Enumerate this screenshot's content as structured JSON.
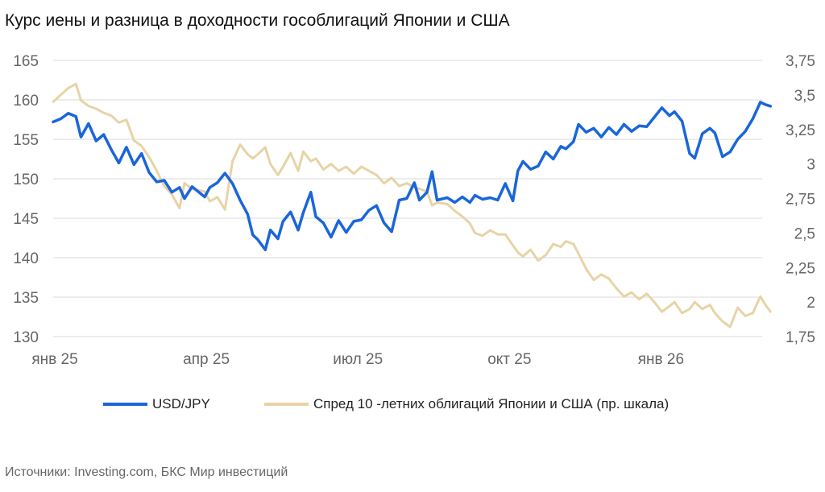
{
  "title": "Курс иены и разница в доходности гособлигаций Японии и США",
  "source": "Источники: Investing.com, БКС Мир инвестиций",
  "colors": {
    "usdjpy": "#1a66d9",
    "spread": "#e7d3a6",
    "grid": "#d9d9d9",
    "tick": "#666666"
  },
  "legend": [
    {
      "label": "USD/JPY",
      "color": "#1a66d9"
    },
    {
      "label": "Спред 10 -летних облигаций Японии и США (пр. шкала)",
      "color": "#e7d3a6"
    }
  ],
  "chart_data": {
    "type": "line",
    "title": "Курс иены и разница в доходности гособлигаций Японии и США",
    "x_labels": [
      {
        "label": "янв 25",
        "month": 0
      },
      {
        "label": "апр 25",
        "month": 3
      },
      {
        "label": "июл 25",
        "month": 6
      },
      {
        "label": "окт 25",
        "month": 9
      },
      {
        "label": "янв 26",
        "month": 12
      }
    ],
    "y_left": {
      "min": 130,
      "max": 165,
      "ticks": [
        "130",
        "135",
        "140",
        "145",
        "150",
        "155",
        "160",
        "165"
      ]
    },
    "y_right": {
      "min": 1.75,
      "max": 3.75,
      "ticks": [
        "1,75",
        "2",
        "2,25",
        "2,5",
        "2,75",
        "3",
        "3,25",
        "3,5",
        "3,75"
      ]
    },
    "grid": true,
    "legend_position": "bottom",
    "series": [
      {
        "name": "USD/JPY",
        "axis": "left",
        "color": "#1a66d9",
        "points": [
          [
            0.0,
            157.2
          ],
          [
            0.15,
            157.6
          ],
          [
            0.3,
            158.3
          ],
          [
            0.45,
            157.9
          ],
          [
            0.55,
            155.3
          ],
          [
            0.7,
            157.0
          ],
          [
            0.85,
            154.8
          ],
          [
            1.0,
            155.6
          ],
          [
            1.15,
            153.7
          ],
          [
            1.3,
            152.0
          ],
          [
            1.45,
            154.0
          ],
          [
            1.6,
            151.8
          ],
          [
            1.75,
            153.2
          ],
          [
            1.9,
            150.8
          ],
          [
            2.05,
            149.6
          ],
          [
            2.2,
            149.8
          ],
          [
            2.35,
            148.3
          ],
          [
            2.5,
            148.9
          ],
          [
            2.6,
            147.5
          ],
          [
            2.75,
            149.0
          ],
          [
            3.0,
            147.7
          ],
          [
            3.1,
            148.9
          ],
          [
            3.25,
            149.5
          ],
          [
            3.4,
            150.7
          ],
          [
            3.55,
            149.4
          ],
          [
            3.7,
            147.3
          ],
          [
            3.85,
            145.5
          ],
          [
            3.95,
            142.9
          ],
          [
            4.05,
            142.3
          ],
          [
            4.2,
            141.0
          ],
          [
            4.3,
            143.5
          ],
          [
            4.45,
            142.4
          ],
          [
            4.55,
            144.6
          ],
          [
            4.7,
            145.8
          ],
          [
            4.85,
            143.5
          ],
          [
            4.95,
            145.7
          ],
          [
            5.1,
            148.3
          ],
          [
            5.2,
            145.2
          ],
          [
            5.35,
            144.4
          ],
          [
            5.5,
            142.6
          ],
          [
            5.65,
            144.7
          ],
          [
            5.8,
            143.2
          ],
          [
            5.95,
            144.6
          ],
          [
            6.1,
            144.8
          ],
          [
            6.25,
            146.0
          ],
          [
            6.4,
            146.6
          ],
          [
            6.55,
            144.4
          ],
          [
            6.7,
            143.3
          ],
          [
            6.85,
            147.3
          ],
          [
            7.0,
            147.5
          ],
          [
            7.15,
            149.5
          ],
          [
            7.25,
            147.3
          ],
          [
            7.4,
            148.3
          ],
          [
            7.5,
            150.9
          ],
          [
            7.6,
            147.3
          ],
          [
            7.8,
            147.6
          ],
          [
            7.95,
            147.0
          ],
          [
            8.1,
            147.7
          ],
          [
            8.25,
            147.0
          ],
          [
            8.35,
            147.9
          ],
          [
            8.5,
            147.4
          ],
          [
            8.65,
            147.6
          ],
          [
            8.8,
            147.3
          ],
          [
            8.95,
            149.4
          ],
          [
            9.1,
            147.2
          ],
          [
            9.2,
            151.0
          ],
          [
            9.3,
            152.2
          ],
          [
            9.45,
            151.2
          ],
          [
            9.6,
            151.6
          ],
          [
            9.75,
            153.4
          ],
          [
            9.9,
            152.5
          ],
          [
            10.05,
            154.1
          ],
          [
            10.15,
            153.8
          ],
          [
            10.3,
            154.7
          ],
          [
            10.4,
            156.9
          ],
          [
            10.55,
            155.9
          ],
          [
            10.7,
            156.4
          ],
          [
            10.85,
            155.3
          ],
          [
            11.0,
            156.5
          ],
          [
            11.15,
            155.6
          ],
          [
            11.3,
            156.9
          ],
          [
            11.45,
            156.0
          ],
          [
            11.6,
            156.7
          ],
          [
            11.75,
            156.6
          ],
          [
            11.9,
            157.8
          ],
          [
            12.05,
            159.0
          ],
          [
            12.2,
            158.0
          ],
          [
            12.3,
            158.5
          ],
          [
            12.45,
            157.3
          ],
          [
            12.6,
            153.2
          ],
          [
            12.7,
            152.6
          ],
          [
            12.85,
            155.7
          ],
          [
            13.0,
            156.4
          ],
          [
            13.1,
            155.8
          ],
          [
            13.25,
            152.8
          ],
          [
            13.4,
            153.4
          ],
          [
            13.55,
            155.0
          ],
          [
            13.7,
            156.0
          ],
          [
            13.85,
            157.6
          ],
          [
            14.0,
            159.7
          ],
          [
            14.1,
            159.4
          ],
          [
            14.2,
            159.2
          ]
        ]
      },
      {
        "name": "Спред 10 -летних облигаций Японии и США (пр. шкала)",
        "axis": "right",
        "color": "#e7d3a6",
        "points": [
          [
            0.0,
            3.45
          ],
          [
            0.15,
            3.5
          ],
          [
            0.3,
            3.55
          ],
          [
            0.45,
            3.58
          ],
          [
            0.55,
            3.46
          ],
          [
            0.7,
            3.42
          ],
          [
            0.85,
            3.4
          ],
          [
            1.0,
            3.37
          ],
          [
            1.15,
            3.35
          ],
          [
            1.3,
            3.3
          ],
          [
            1.45,
            3.32
          ],
          [
            1.6,
            3.17
          ],
          [
            1.75,
            3.13
          ],
          [
            1.9,
            3.05
          ],
          [
            2.05,
            2.95
          ],
          [
            2.2,
            2.84
          ],
          [
            2.35,
            2.78
          ],
          [
            2.5,
            2.68
          ],
          [
            2.6,
            2.86
          ],
          [
            2.75,
            2.82
          ],
          [
            3.0,
            2.8
          ],
          [
            3.1,
            2.73
          ],
          [
            3.25,
            2.76
          ],
          [
            3.4,
            2.67
          ],
          [
            3.55,
            3.02
          ],
          [
            3.7,
            3.14
          ],
          [
            3.85,
            3.07
          ],
          [
            3.95,
            3.04
          ],
          [
            4.05,
            3.07
          ],
          [
            4.2,
            3.12
          ],
          [
            4.3,
            3.0
          ],
          [
            4.45,
            2.92
          ],
          [
            4.55,
            2.98
          ],
          [
            4.7,
            3.08
          ],
          [
            4.85,
            2.95
          ],
          [
            4.95,
            3.09
          ],
          [
            5.1,
            3.02
          ],
          [
            5.2,
            3.04
          ],
          [
            5.35,
            2.96
          ],
          [
            5.5,
            3.0
          ],
          [
            5.65,
            2.95
          ],
          [
            5.8,
            2.98
          ],
          [
            5.95,
            2.93
          ],
          [
            6.1,
            2.98
          ],
          [
            6.25,
            2.95
          ],
          [
            6.4,
            2.92
          ],
          [
            6.55,
            2.86
          ],
          [
            6.7,
            2.9
          ],
          [
            6.85,
            2.84
          ],
          [
            7.0,
            2.86
          ],
          [
            7.15,
            2.83
          ],
          [
            7.25,
            2.82
          ],
          [
            7.4,
            2.8
          ],
          [
            7.5,
            2.7
          ],
          [
            7.6,
            2.72
          ],
          [
            7.8,
            2.71
          ],
          [
            7.95,
            2.66
          ],
          [
            8.1,
            2.62
          ],
          [
            8.25,
            2.57
          ],
          [
            8.35,
            2.5
          ],
          [
            8.5,
            2.48
          ],
          [
            8.65,
            2.52
          ],
          [
            8.8,
            2.49
          ],
          [
            8.95,
            2.49
          ],
          [
            9.1,
            2.41
          ],
          [
            9.2,
            2.36
          ],
          [
            9.3,
            2.33
          ],
          [
            9.45,
            2.38
          ],
          [
            9.6,
            2.3
          ],
          [
            9.75,
            2.34
          ],
          [
            9.9,
            2.42
          ],
          [
            10.05,
            2.4
          ],
          [
            10.15,
            2.44
          ],
          [
            10.3,
            2.42
          ],
          [
            10.4,
            2.35
          ],
          [
            10.55,
            2.24
          ],
          [
            10.7,
            2.16
          ],
          [
            10.85,
            2.2
          ],
          [
            11.0,
            2.17
          ],
          [
            11.15,
            2.1
          ],
          [
            11.3,
            2.04
          ],
          [
            11.45,
            2.07
          ],
          [
            11.6,
            2.02
          ],
          [
            11.75,
            2.06
          ],
          [
            11.9,
            2.0
          ],
          [
            12.05,
            1.93
          ],
          [
            12.2,
            1.97
          ],
          [
            12.3,
            2.0
          ],
          [
            12.45,
            1.92
          ],
          [
            12.6,
            1.95
          ],
          [
            12.7,
            2.0
          ],
          [
            12.85,
            1.95
          ],
          [
            13.0,
            1.98
          ],
          [
            13.1,
            1.92
          ],
          [
            13.25,
            1.86
          ],
          [
            13.4,
            1.82
          ],
          [
            13.55,
            1.96
          ],
          [
            13.7,
            1.9
          ],
          [
            13.85,
            1.92
          ],
          [
            14.0,
            2.04
          ],
          [
            14.1,
            1.98
          ],
          [
            14.2,
            1.93
          ]
        ]
      }
    ]
  }
}
